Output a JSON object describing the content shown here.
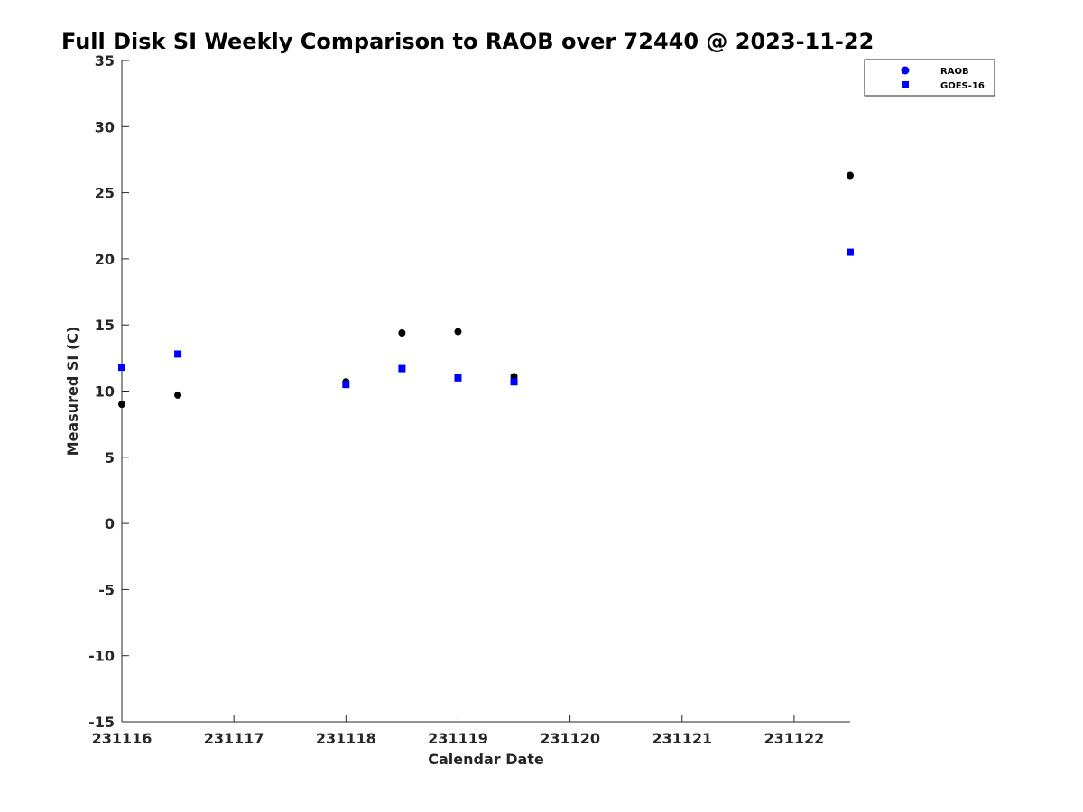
{
  "chart_data": {
    "type": "scatter",
    "title": "Full Disk SI Weekly Comparison to RAOB over 72440 @ 2023-11-22",
    "xlabel": "Calendar Date",
    "ylabel": "Measured SI (C)",
    "xlim": [
      231116,
      231122.5
    ],
    "ylim": [
      -15,
      35
    ],
    "x_ticks": [
      231116,
      231117,
      231118,
      231119,
      231120,
      231121,
      231122
    ],
    "x_tick_labels": [
      "231116",
      "231117",
      "231118",
      "231119",
      "231120",
      "231121",
      "231122"
    ],
    "y_ticks": [
      35,
      30,
      25,
      20,
      15,
      10,
      5,
      0,
      -5,
      -10,
      -15
    ],
    "y_tick_labels": [
      "35",
      "30",
      "25",
      "20",
      "15",
      "10",
      "5",
      "0",
      "-5",
      "-10",
      "-15"
    ],
    "grid": false,
    "legend_position": "top-right",
    "series": [
      {
        "name": "RAOB",
        "marker": "circle",
        "color": "#000000",
        "legend_color": "#0000ff",
        "x": [
          231116,
          231116.5,
          231118,
          231118.5,
          231119,
          231119.5,
          231122.5
        ],
        "y": [
          9.0,
          9.7,
          10.7,
          14.4,
          14.5,
          11.1,
          26.3
        ]
      },
      {
        "name": "GOES-16",
        "marker": "square",
        "color": "#0000ff",
        "legend_color": "#0000ff",
        "x": [
          231116,
          231116.5,
          231118,
          231118.5,
          231119,
          231119.5,
          231122.5
        ],
        "y": [
          11.8,
          12.8,
          10.5,
          11.7,
          11.0,
          10.7,
          20.5
        ]
      }
    ]
  }
}
